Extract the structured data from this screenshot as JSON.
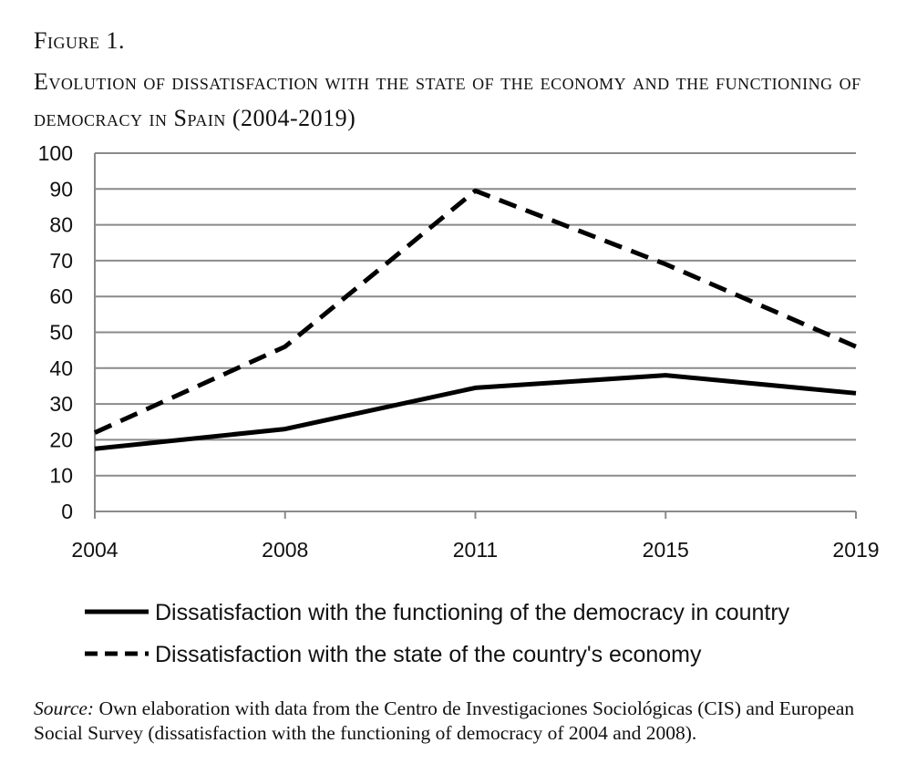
{
  "figure": {
    "label": "Figure 1.",
    "title": "Evolution of dissatisfaction with the state of the economy and the functioning of democracy in Spain (2004-2019)"
  },
  "chart_data": {
    "type": "line",
    "x": [
      "2004",
      "2008",
      "2011",
      "2015",
      "2019"
    ],
    "series": [
      {
        "name": "Dissatisfaction with the functioning of the democracy in country",
        "style": "solid",
        "values": [
          17.5,
          23,
          34.5,
          38,
          33
        ]
      },
      {
        "name": "Dissatisfaction with the state of the country's economy",
        "style": "dashed",
        "values": [
          22,
          46,
          89.5,
          69,
          46
        ]
      }
    ],
    "ylim": [
      0,
      100
    ],
    "yticks": [
      0,
      10,
      20,
      30,
      40,
      50,
      60,
      70,
      80,
      90,
      100
    ],
    "grid": true,
    "legend_position": "bottom",
    "title": "",
    "xlabel": "",
    "ylabel": ""
  },
  "source": {
    "label": "Source:",
    "text": " Own elaboration with data from the Centro de Investigaciones Sociológicas (CIS) and European Social Survey (dissatisfaction with the functioning of democracy of 2004 and 2008)."
  }
}
